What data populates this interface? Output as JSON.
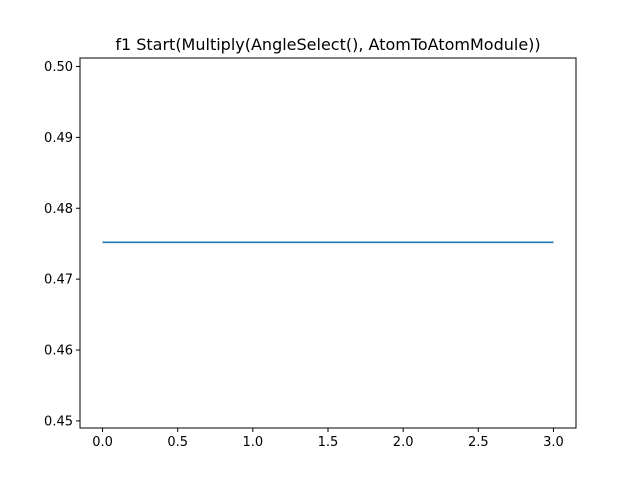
{
  "chart_data": {
    "type": "line",
    "title": "f1 Start(Multiply(AngleSelect(), AtomToAtomModule))",
    "xlabel": "",
    "ylabel": "",
    "x": [
      0,
      1,
      2,
      3
    ],
    "series": [
      {
        "values": [
          0.4752,
          0.4752,
          0.4752,
          0.4752
        ],
        "color": "#1f77b4"
      }
    ],
    "xlim": [
      -0.15,
      3.15
    ],
    "ylim": [
      0.449,
      0.5012
    ],
    "xticks": [
      0.0,
      0.5,
      1.0,
      1.5,
      2.0,
      2.5,
      3.0
    ],
    "xtick_labels": [
      "0.0",
      "0.5",
      "1.0",
      "1.5",
      "2.0",
      "2.5",
      "3.0"
    ],
    "yticks": [
      0.45,
      0.46,
      0.47,
      0.48,
      0.49,
      0.5
    ],
    "ytick_labels": [
      "0.45",
      "0.46",
      "0.47",
      "0.48",
      "0.49",
      "0.50"
    ],
    "grid": false,
    "legend": "none"
  }
}
